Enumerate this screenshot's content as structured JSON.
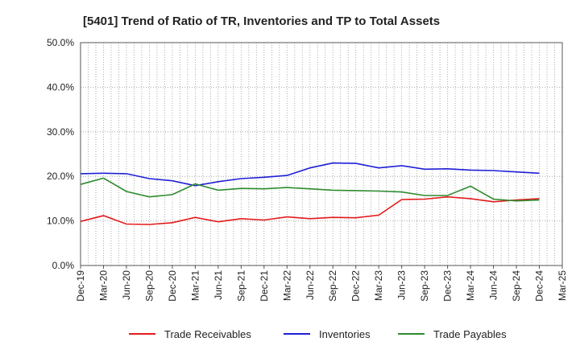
{
  "chart_data": {
    "type": "line",
    "title": "[5401]  Trend of Ratio of TR, Inventories and TP to Total Assets",
    "xlabel": "",
    "ylabel": "",
    "ylim": [
      0,
      50
    ],
    "grid": true,
    "legend_position": "bottom",
    "y_ticks": [
      "0.0%",
      "10.0%",
      "20.0%",
      "30.0%",
      "40.0%",
      "50.0%"
    ],
    "x_tick_labels": [
      "Dec-19",
      "Mar-20",
      "Jun-20",
      "Sep-20",
      "Dec-20",
      "Mar-21",
      "Jun-21",
      "Sep-21",
      "Dec-21",
      "Mar-22",
      "Jun-22",
      "Sep-22",
      "Dec-22",
      "Mar-23",
      "Jun-23",
      "Sep-23",
      "Dec-23",
      "Mar-24",
      "Jun-24",
      "Sep-24",
      "Dec-24",
      "Mar-25"
    ],
    "categories": [
      "Dec-19",
      "Mar-20",
      "Jun-20",
      "Sep-20",
      "Dec-20",
      "Mar-21",
      "Jun-21",
      "Sep-21",
      "Dec-21",
      "Mar-22",
      "Jun-22",
      "Sep-22",
      "Dec-22",
      "Mar-23",
      "Jun-23",
      "Sep-23",
      "Dec-23",
      "Mar-24",
      "Jun-24",
      "Sep-24",
      "Dec-24"
    ],
    "series": [
      {
        "name": "Trade Receivables",
        "color": "#e31a1c",
        "values": [
          9.9,
          11.2,
          9.3,
          9.2,
          9.6,
          10.8,
          9.8,
          10.5,
          10.2,
          10.9,
          10.5,
          10.8,
          10.7,
          11.3,
          14.8,
          14.9,
          15.4,
          15.0,
          14.3,
          14.7,
          15.0
        ]
      },
      {
        "name": "Inventories",
        "color": "#1f1fd6",
        "values": [
          20.6,
          20.7,
          20.6,
          19.5,
          19.0,
          17.9,
          18.8,
          19.5,
          19.8,
          20.2,
          21.9,
          23.0,
          22.9,
          21.9,
          22.4,
          21.6,
          21.7,
          21.4,
          21.3,
          21.0,
          20.7
        ]
      },
      {
        "name": "Trade Payables",
        "color": "#2e8b2e",
        "values": [
          18.2,
          19.6,
          16.6,
          15.4,
          15.9,
          18.3,
          16.9,
          17.3,
          17.2,
          17.5,
          17.2,
          16.9,
          16.8,
          16.7,
          16.5,
          15.7,
          15.7,
          17.8,
          14.9,
          14.5,
          14.7
        ]
      }
    ]
  }
}
